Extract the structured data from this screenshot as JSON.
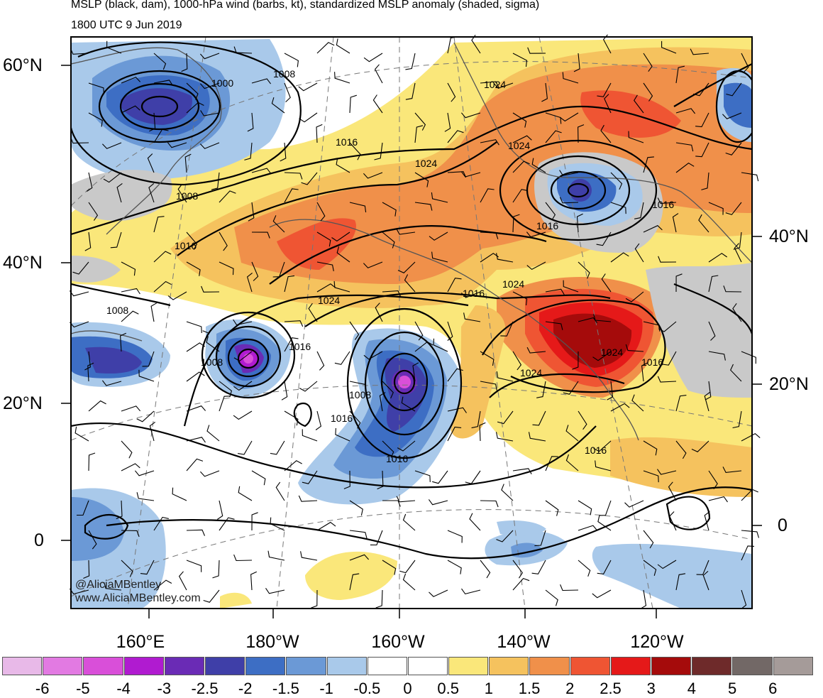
{
  "header": {
    "title": "MSLP (black, dam), 1000-hPa wind (barbs, kt), standardized MSLP anomaly (shaded, sigma)",
    "valid_time": "1800 UTC 9 Jun 2019"
  },
  "credits": {
    "handle": "@AliciaMBentley",
    "website": "www.AliciaMBentley.com"
  },
  "axes": {
    "lat_left": [
      "60°N",
      "40°N",
      "20°N",
      "0"
    ],
    "lat_right": [
      "40°N",
      "20°N",
      "0"
    ],
    "lon_bottom": [
      "160°E",
      "180°W",
      "160°W",
      "140°W",
      "120°W"
    ]
  },
  "contour_labels": [
    "1000",
    "1008",
    "1008",
    "1008",
    "1008",
    "1016",
    "1016",
    "1016",
    "1016",
    "1016",
    "1016",
    "1016",
    "1016",
    "1016",
    "1024",
    "1024",
    "1024",
    "1024",
    "1024",
    "1024",
    "1024"
  ],
  "colorbar": {
    "ticks": [
      "-6",
      "-5",
      "-4",
      "-3",
      "-2.5",
      "-2",
      "-1.5",
      "-1",
      "-0.5",
      "0",
      "0.5",
      "1",
      "1.5",
      "2",
      "2.5",
      "3",
      "4",
      "5",
      "6"
    ],
    "colors": [
      "#e8b9e8",
      "#e27ae2",
      "#d94fd9",
      "#b01bd0",
      "#6a2bb5",
      "#3f3fa8",
      "#3d6ec4",
      "#6b99d6",
      "#a9c9ea",
      "#ffffff",
      "#ffffff",
      "#fae77a",
      "#f5c25e",
      "#f0904a",
      "#ef5533",
      "#e51919",
      "#a50b0b",
      "#6e2a2a",
      "#726866",
      "#a59b99"
    ]
  }
}
